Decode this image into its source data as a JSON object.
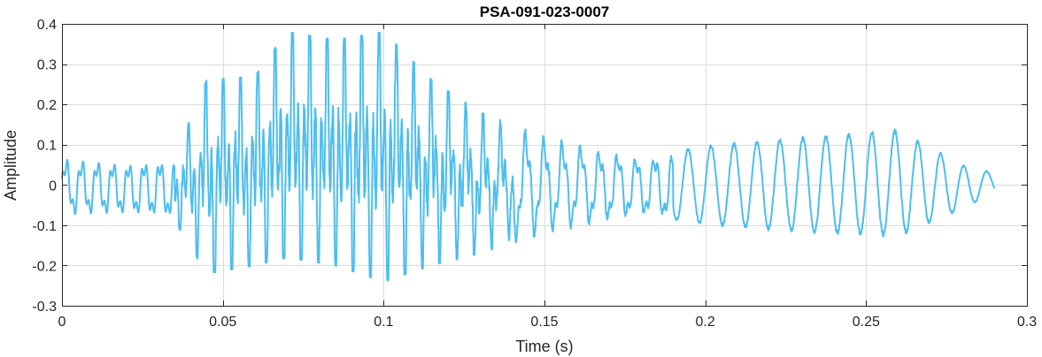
{
  "chart_data": {
    "type": "line",
    "title": "PSA-091-023-0007",
    "xlabel": "Time (s)",
    "ylabel": "Amplitude",
    "xlim": [
      0,
      0.3
    ],
    "ylim": [
      -0.3,
      0.4
    ],
    "xticks": [
      0,
      0.05,
      0.1,
      0.15,
      0.2,
      0.25,
      0.3
    ],
    "xtick_labels": [
      "0",
      "0.05",
      "0.1",
      "0.15",
      "0.2",
      "0.25",
      "0.3"
    ],
    "yticks": [
      -0.3,
      -0.2,
      -0.1,
      0,
      0.1,
      0.2,
      0.3,
      0.4
    ],
    "ytick_labels": [
      "-0.3",
      "-0.2",
      "-0.1",
      "0",
      "0.1",
      "0.2",
      "0.3",
      "0.4"
    ],
    "grid": true,
    "series": [
      {
        "color": "#4DBEEE",
        "x_range": [
          0,
          0.29
        ],
        "envelope": [
          {
            "t": 0.0,
            "max": 0.07,
            "min": -0.08
          },
          {
            "t": 0.02,
            "max": 0.06,
            "min": -0.08
          },
          {
            "t": 0.035,
            "max": 0.07,
            "min": -0.09
          },
          {
            "t": 0.045,
            "max": 0.26,
            "min": -0.22
          },
          {
            "t": 0.06,
            "max": 0.27,
            "min": -0.2
          },
          {
            "t": 0.07,
            "max": 0.38,
            "min": -0.18
          },
          {
            "t": 0.085,
            "max": 0.36,
            "min": -0.2
          },
          {
            "t": 0.1,
            "max": 0.38,
            "min": -0.24
          },
          {
            "t": 0.115,
            "max": 0.26,
            "min": -0.2
          },
          {
            "t": 0.13,
            "max": 0.18,
            "min": -0.17
          },
          {
            "t": 0.15,
            "max": 0.12,
            "min": -0.12
          },
          {
            "t": 0.18,
            "max": 0.07,
            "min": -0.08
          },
          {
            "t": 0.2,
            "max": 0.1,
            "min": -0.1
          },
          {
            "t": 0.23,
            "max": 0.12,
            "min": -0.12
          },
          {
            "t": 0.26,
            "max": 0.14,
            "min": -0.13
          },
          {
            "t": 0.28,
            "max": 0.05,
            "min": -0.06
          },
          {
            "t": 0.29,
            "max": 0.03,
            "min": -0.02
          }
        ]
      }
    ]
  }
}
